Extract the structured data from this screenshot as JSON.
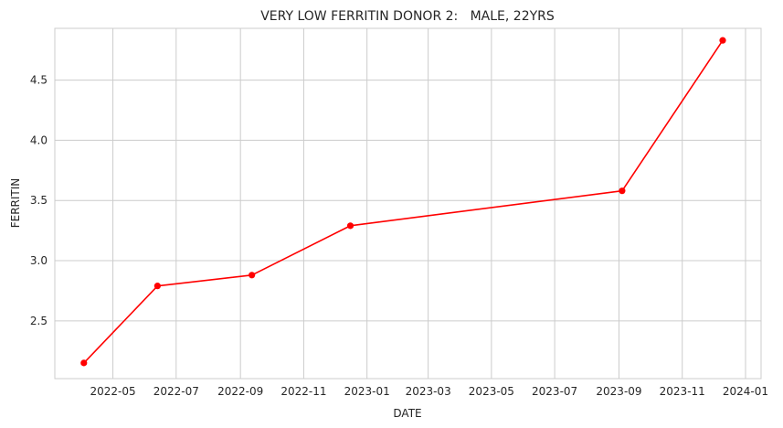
{
  "chart_data": {
    "type": "line",
    "title": "VERY LOW FERRITIN DONOR 2:   MALE, 22YRS",
    "xlabel": "DATE",
    "ylabel": "FERRITIN",
    "x_axis_type": "date",
    "xlim": [
      "2022-03-06",
      "2024-01-16"
    ],
    "ylim": [
      2.02,
      4.93
    ],
    "x_ticks": [
      "2022-05-01",
      "2022-07-01",
      "2022-09-01",
      "2022-11-01",
      "2023-01-01",
      "2023-03-01",
      "2023-05-01",
      "2023-07-01",
      "2023-09-01",
      "2023-11-01",
      "2024-01-01"
    ],
    "x_tick_labels": [
      "2022-05",
      "2022-07",
      "2022-09",
      "2022-11",
      "2023-01",
      "2023-03",
      "2023-05",
      "2023-07",
      "2023-09",
      "2023-11",
      "2024-01"
    ],
    "y_ticks": [
      2.5,
      3.0,
      3.5,
      4.0,
      4.5
    ],
    "y_tick_labels": [
      "2.5",
      "3.0",
      "3.5",
      "4.0",
      "4.5"
    ],
    "grid": true,
    "series": [
      {
        "color": "#ff0000",
        "marker": "circle",
        "x": [
          "2022-04-03",
          "2022-06-13",
          "2022-09-12",
          "2022-12-16",
          "2023-09-04",
          "2023-12-10"
        ],
        "y": [
          2.15,
          2.79,
          2.88,
          3.29,
          3.58,
          4.83
        ]
      }
    ]
  }
}
